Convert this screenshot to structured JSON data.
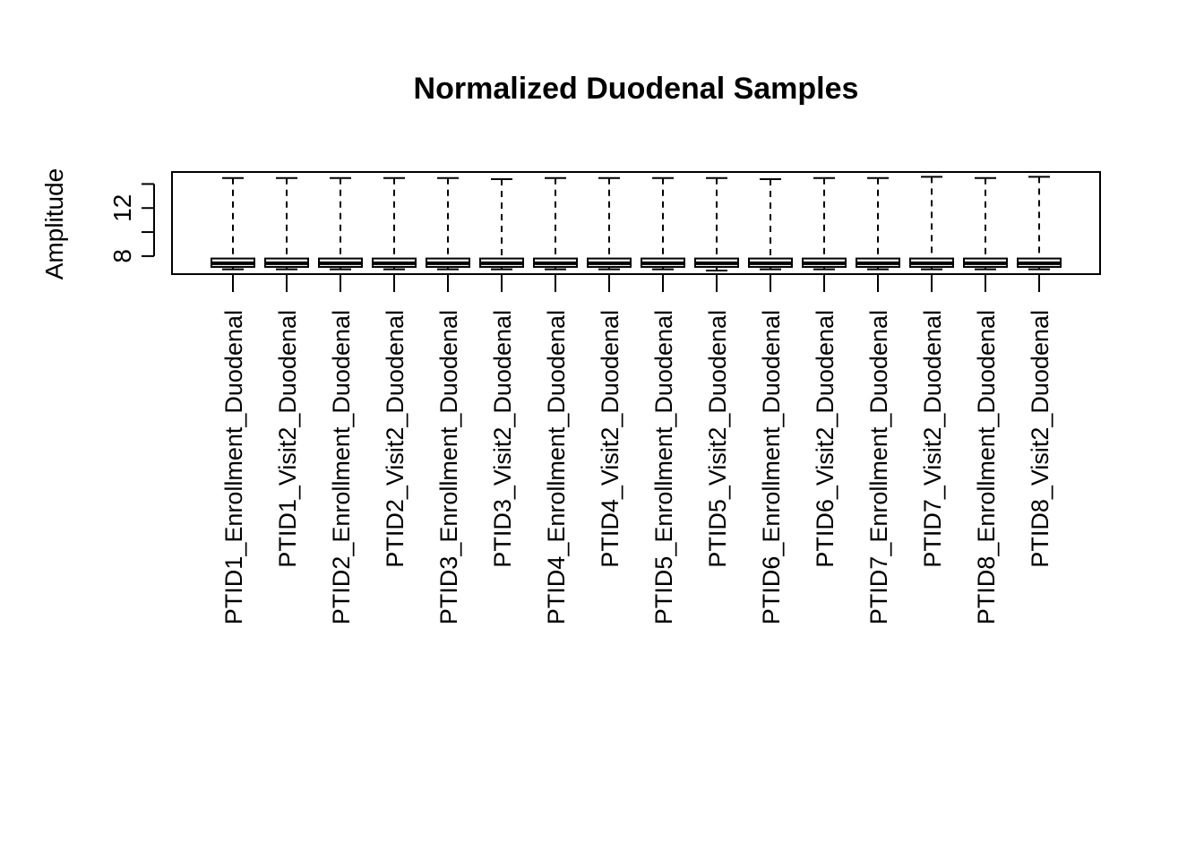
{
  "chart_data": {
    "type": "boxplot",
    "title": "Normalized Duodenal Samples",
    "xlabel": "",
    "ylabel": "Amplitude",
    "ylim": [
      6.5,
      15.0
    ],
    "yticks": [
      8,
      10,
      12,
      14
    ],
    "ytick_labels": [
      "8",
      "",
      "12",
      ""
    ],
    "grid": false,
    "legend": "none",
    "colors": {
      "box_fill": "#ffffff",
      "stroke": "#000000"
    },
    "categories": [
      "PTID1_Enrollment_Duodenal",
      "PTID1_Visit2_Duodenal",
      "PTID2_Enrollment_Duodenal",
      "PTID2_Visit2_Duodenal",
      "PTID3_Enrollment_Duodenal",
      "PTID3_Visit2_Duodenal",
      "PTID4_Enrollment_Duodenal",
      "PTID4_Visit2_Duodenal",
      "PTID5_Enrollment_Duodenal",
      "PTID5_Visit2_Duodenal",
      "PTID6_Enrollment_Duodenal",
      "PTID6_Visit2_Duodenal",
      "PTID7_Enrollment_Duodenal",
      "PTID7_Visit2_Duodenal",
      "PTID8_Enrollment_Duodenal",
      "PTID8_Visit2_Duodenal"
    ],
    "boxes": [
      {
        "whisker_low": 6.9,
        "q1": 7.1,
        "median": 7.4,
        "q3": 7.8,
        "whisker_high": 14.5
      },
      {
        "whisker_low": 6.9,
        "q1": 7.1,
        "median": 7.4,
        "q3": 7.8,
        "whisker_high": 14.5
      },
      {
        "whisker_low": 6.9,
        "q1": 7.1,
        "median": 7.4,
        "q3": 7.8,
        "whisker_high": 14.5
      },
      {
        "whisker_low": 6.9,
        "q1": 7.1,
        "median": 7.4,
        "q3": 7.8,
        "whisker_high": 14.5
      },
      {
        "whisker_low": 6.9,
        "q1": 7.1,
        "median": 7.4,
        "q3": 7.8,
        "whisker_high": 14.5
      },
      {
        "whisker_low": 6.9,
        "q1": 7.1,
        "median": 7.4,
        "q3": 7.8,
        "whisker_high": 14.4
      },
      {
        "whisker_low": 6.9,
        "q1": 7.1,
        "median": 7.4,
        "q3": 7.8,
        "whisker_high": 14.5
      },
      {
        "whisker_low": 6.9,
        "q1": 7.1,
        "median": 7.4,
        "q3": 7.8,
        "whisker_high": 14.5
      },
      {
        "whisker_low": 6.9,
        "q1": 7.1,
        "median": 7.4,
        "q3": 7.8,
        "whisker_high": 14.5
      },
      {
        "whisker_low": 6.8,
        "q1": 7.1,
        "median": 7.4,
        "q3": 7.8,
        "whisker_high": 14.5
      },
      {
        "whisker_low": 6.9,
        "q1": 7.1,
        "median": 7.4,
        "q3": 7.8,
        "whisker_high": 14.4
      },
      {
        "whisker_low": 6.9,
        "q1": 7.1,
        "median": 7.4,
        "q3": 7.8,
        "whisker_high": 14.5
      },
      {
        "whisker_low": 6.9,
        "q1": 7.1,
        "median": 7.4,
        "q3": 7.8,
        "whisker_high": 14.5
      },
      {
        "whisker_low": 6.9,
        "q1": 7.1,
        "median": 7.4,
        "q3": 7.8,
        "whisker_high": 14.6
      },
      {
        "whisker_low": 6.9,
        "q1": 7.1,
        "median": 7.4,
        "q3": 7.8,
        "whisker_high": 14.5
      },
      {
        "whisker_low": 6.9,
        "q1": 7.1,
        "median": 7.4,
        "q3": 7.8,
        "whisker_high": 14.6
      }
    ]
  }
}
